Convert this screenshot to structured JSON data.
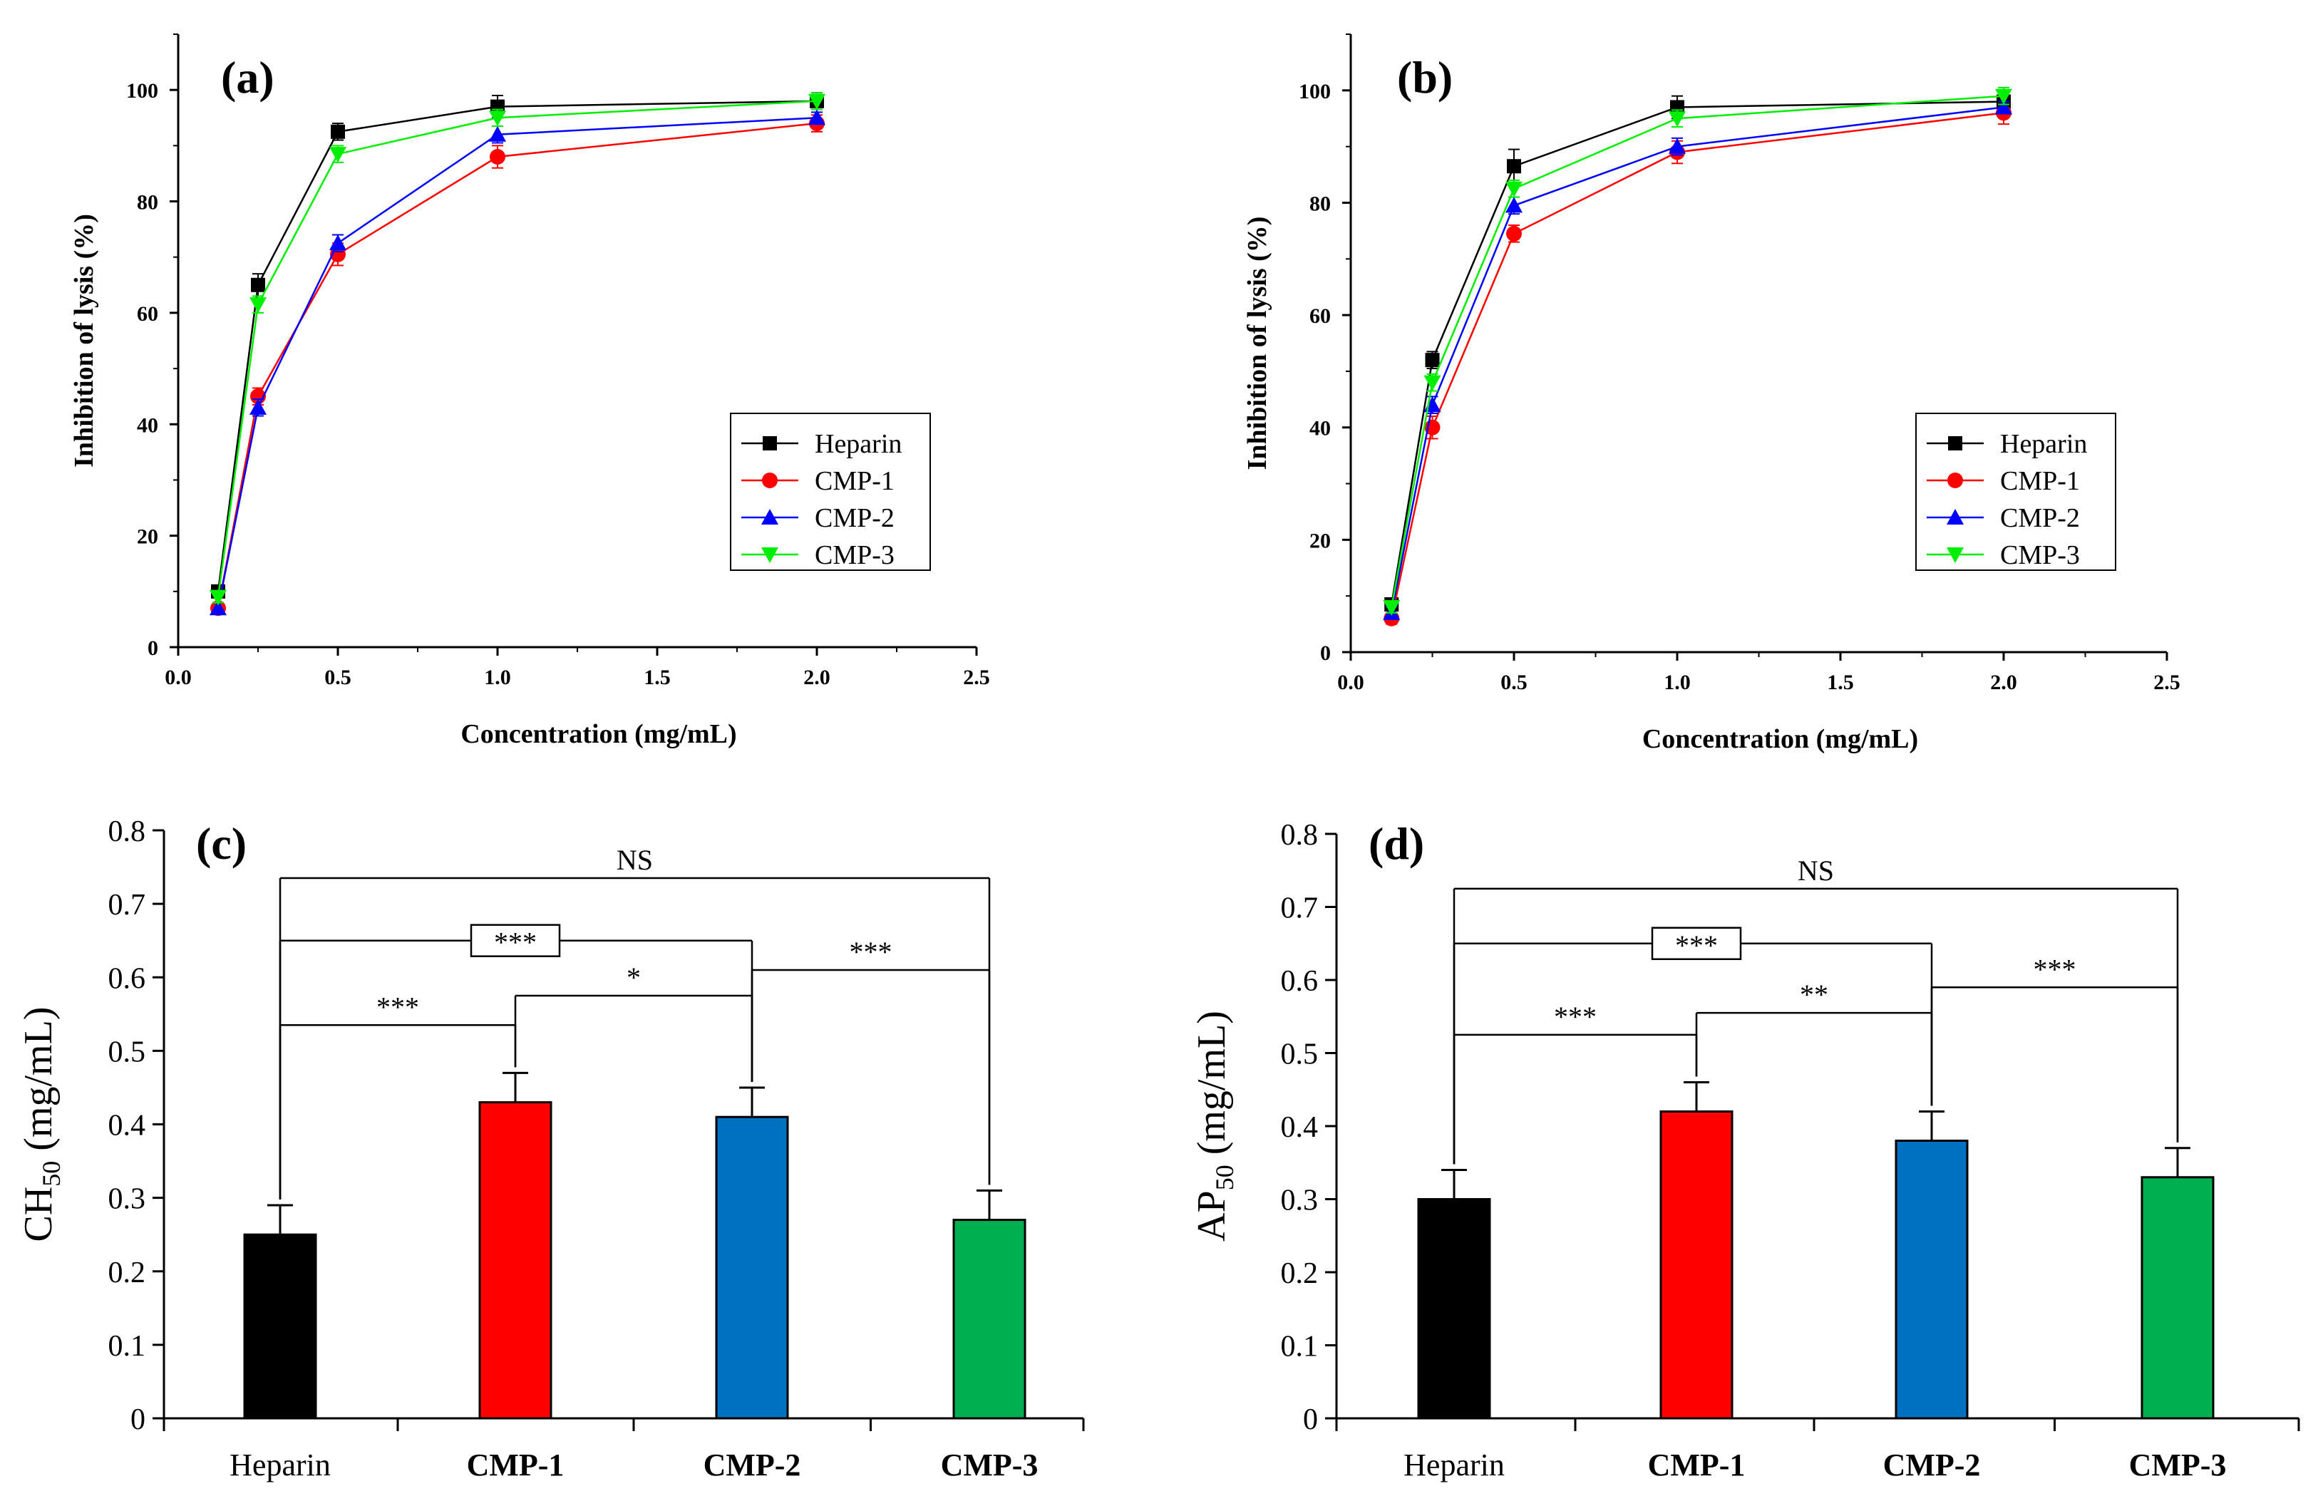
{
  "chart_data": [
    {
      "id": "a",
      "type": "line",
      "panel_label": "(a)",
      "title": "",
      "xlabel": "Concentration (mg/mL)",
      "ylabel": "Inhibition of lysis (%)",
      "xlim": [
        0.0,
        2.5
      ],
      "ylim": [
        0,
        110
      ],
      "x_ticks": [
        "0.0",
        "0.5",
        "1.0",
        "1.5",
        "2.0",
        "2.5"
      ],
      "y_ticks": [
        "0",
        "20",
        "40",
        "60",
        "80",
        "100"
      ],
      "legend_position": "center-right",
      "x": [
        0.125,
        0.25,
        0.5,
        1.0,
        2.0
      ],
      "series": [
        {
          "name": "Heparin",
          "color": "#000000",
          "marker": "square",
          "values": [
            10,
            65,
            92.5,
            97,
            98
          ],
          "errors": [
            1.0,
            2.0,
            1.5,
            2.0,
            1.5
          ]
        },
        {
          "name": "CMP-1",
          "color": "#ff0000",
          "marker": "circle",
          "values": [
            7,
            45,
            70.5,
            88,
            94
          ],
          "errors": [
            1.0,
            1.5,
            2.0,
            2.0,
            1.5
          ]
        },
        {
          "name": "CMP-2",
          "color": "#0000ff",
          "marker": "triangle-up",
          "values": [
            7,
            43,
            72.5,
            92,
            95
          ],
          "errors": [
            1.0,
            1.5,
            1.5,
            1.5,
            1.0
          ]
        },
        {
          "name": "CMP-3",
          "color": "#00ee00",
          "marker": "triangle-down",
          "values": [
            9,
            61.5,
            88.5,
            95,
            98
          ],
          "errors": [
            1.0,
            1.5,
            1.5,
            1.5,
            1.5
          ]
        }
      ]
    },
    {
      "id": "b",
      "type": "line",
      "panel_label": "(b)",
      "title": "",
      "xlabel": "Concentration (mg/mL)",
      "ylabel": "Inhibition of lysis (%)",
      "xlim": [
        0.0,
        2.5
      ],
      "ylim": [
        0,
        110
      ],
      "x_ticks": [
        "0.0",
        "0.5",
        "1.0",
        "1.5",
        "2.0",
        "2.5"
      ],
      "y_ticks": [
        "0",
        "20",
        "40",
        "60",
        "80",
        "100"
      ],
      "legend_position": "center-right",
      "x": [
        0.125,
        0.25,
        0.5,
        1.0,
        2.0
      ],
      "series": [
        {
          "name": "Heparin",
          "color": "#000000",
          "marker": "square",
          "values": [
            8.5,
            52,
            86.5,
            97,
            98
          ],
          "errors": [
            1.0,
            1.5,
            3.0,
            2.0,
            1.5
          ]
        },
        {
          "name": "CMP-1",
          "color": "#ff0000",
          "marker": "circle",
          "values": [
            6,
            40,
            74.5,
            89,
            96
          ],
          "errors": [
            1.0,
            2.0,
            1.5,
            2.0,
            2.0
          ]
        },
        {
          "name": "CMP-2",
          "color": "#0000ff",
          "marker": "triangle-up",
          "values": [
            7,
            44,
            79.5,
            90,
            97
          ],
          "errors": [
            1.0,
            1.5,
            1.5,
            1.5,
            1.0
          ]
        },
        {
          "name": "CMP-3",
          "color": "#00ee00",
          "marker": "triangle-down",
          "values": [
            8,
            48,
            82.5,
            95,
            99
          ],
          "errors": [
            1.0,
            1.5,
            1.5,
            1.5,
            1.5
          ]
        }
      ]
    },
    {
      "id": "c",
      "type": "bar",
      "panel_label": "(c)",
      "title": "",
      "xlabel": "",
      "ylabel": "CH",
      "ylabel_subscript": "50",
      "ylabel_suffix": " (mg/mL)",
      "ylim": [
        0,
        0.8
      ],
      "y_ticks": [
        "0",
        "0.1",
        "0.2",
        "0.3",
        "0.4",
        "0.5",
        "0.6",
        "0.7",
        "0.8"
      ],
      "categories": [
        "Heparin",
        "CMP-1",
        "CMP-2",
        "CMP-3"
      ],
      "category_bold": [
        false,
        true,
        true,
        true
      ],
      "values": [
        0.25,
        0.43,
        0.41,
        0.27
      ],
      "errors": [
        0.04,
        0.04,
        0.04,
        0.04
      ],
      "colors": [
        "#000000",
        "#ff0000",
        "#0070c0",
        "#00b050"
      ],
      "significance": [
        {
          "from": 0,
          "to": 3,
          "y": 0.735,
          "label": "NS",
          "boxed": false,
          "label_side": "above"
        },
        {
          "from": 0,
          "to": 2,
          "y": 0.65,
          "label": "***",
          "boxed": true,
          "label_pos": 1
        },
        {
          "from": 2,
          "to": 3,
          "y": 0.61,
          "label": "***",
          "boxed": false,
          "label_side": "above"
        },
        {
          "from": 1,
          "to": 2,
          "y": 0.575,
          "label": "*",
          "boxed": false,
          "label_side": "above"
        },
        {
          "from": 0,
          "to": 1,
          "y": 0.535,
          "label": "***",
          "boxed": false,
          "label_side": "above"
        }
      ]
    },
    {
      "id": "d",
      "type": "bar",
      "panel_label": "(d)",
      "title": "",
      "xlabel": "",
      "ylabel": "AP",
      "ylabel_subscript": "50",
      "ylabel_suffix": " (mg/mL)",
      "ylim": [
        0,
        0.8
      ],
      "y_ticks": [
        "0",
        "0.1",
        "0.2",
        "0.3",
        "0.4",
        "0.5",
        "0.6",
        "0.7",
        "0.8"
      ],
      "categories": [
        "Heparin",
        "CMP-1",
        "CMP-2",
        "CMP-3"
      ],
      "category_bold": [
        false,
        true,
        true,
        true
      ],
      "values": [
        0.3,
        0.42,
        0.38,
        0.33
      ],
      "errors": [
        0.04,
        0.04,
        0.04,
        0.04
      ],
      "colors": [
        "#000000",
        "#ff0000",
        "#0070c0",
        "#00b050"
      ],
      "significance": [
        {
          "from": 0,
          "to": 3,
          "y": 0.725,
          "label": "NS",
          "boxed": false,
          "label_side": "above"
        },
        {
          "from": 0,
          "to": 2,
          "y": 0.65,
          "label": "***",
          "boxed": true,
          "label_pos": 1
        },
        {
          "from": 2,
          "to": 3,
          "y": 0.59,
          "label": "***",
          "boxed": false,
          "label_side": "above"
        },
        {
          "from": 1,
          "to": 2,
          "y": 0.555,
          "label": "**",
          "boxed": false,
          "label_side": "above"
        },
        {
          "from": 0,
          "to": 1,
          "y": 0.525,
          "label": "***",
          "boxed": false,
          "label_side": "above"
        }
      ]
    }
  ]
}
